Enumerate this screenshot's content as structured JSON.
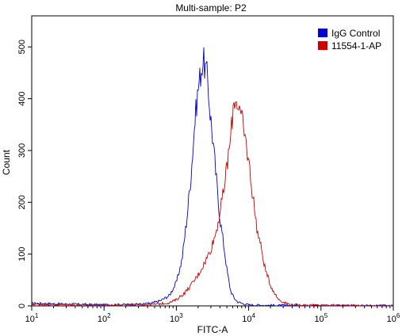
{
  "chart_data": {
    "type": "line",
    "title": "Multi-sample: P2",
    "xlabel": "FITC-A",
    "ylabel": "Count",
    "xscale": "log",
    "xlim": [
      10,
      1000000
    ],
    "ylim": [
      0,
      560
    ],
    "x_ticks": [
      10,
      100,
      1000,
      10000,
      100000,
      1000000
    ],
    "x_tick_labels": [
      {
        "base": "10",
        "exp": "1"
      },
      {
        "base": "10",
        "exp": "2"
      },
      {
        "base": "10",
        "exp": "3"
      },
      {
        "base": "10",
        "exp": "4"
      },
      {
        "base": "10",
        "exp": "5"
      },
      {
        "base": "10",
        "exp": "6"
      }
    ],
    "y_ticks": [
      0,
      100,
      200,
      300,
      400,
      500
    ],
    "grid": false,
    "legend_position": "top-right",
    "series": [
      {
        "name": "IgG Control",
        "color": "#0000cc",
        "x": [
          10,
          100,
          300,
          450,
          600,
          800,
          1000,
          1200,
          1400,
          1600,
          1800,
          2000,
          2200,
          2350,
          2500,
          2700,
          2900,
          3200,
          3600,
          4000,
          4500,
          5000,
          5600,
          6300,
          7000,
          8000,
          10000,
          20000,
          1000000
        ],
        "y": [
          5,
          2,
          3,
          5,
          10,
          20,
          45,
          90,
          170,
          255,
          355,
          420,
          455,
          475,
          460,
          440,
          380,
          320,
          240,
          170,
          120,
          70,
          30,
          15,
          8,
          5,
          2,
          1,
          0
        ]
      },
      {
        "name": "11554-1-AP",
        "color": "#cc0000",
        "x": [
          10,
          100,
          500,
          800,
          1000,
          1300,
          1600,
          2000,
          2500,
          3000,
          3500,
          4000,
          4500,
          5000,
          5600,
          6000,
          6300,
          7000,
          8000,
          9000,
          10000,
          11000,
          12000,
          13000,
          15000,
          17000,
          20000,
          25000,
          30000,
          40000,
          1000000
        ],
        "y": [
          3,
          1,
          3,
          6,
          12,
          25,
          40,
          60,
          85,
          110,
          140,
          180,
          220,
          270,
          320,
          370,
          400,
          395,
          360,
          320,
          280,
          230,
          190,
          150,
          110,
          70,
          40,
          15,
          7,
          2,
          0
        ]
      }
    ]
  }
}
